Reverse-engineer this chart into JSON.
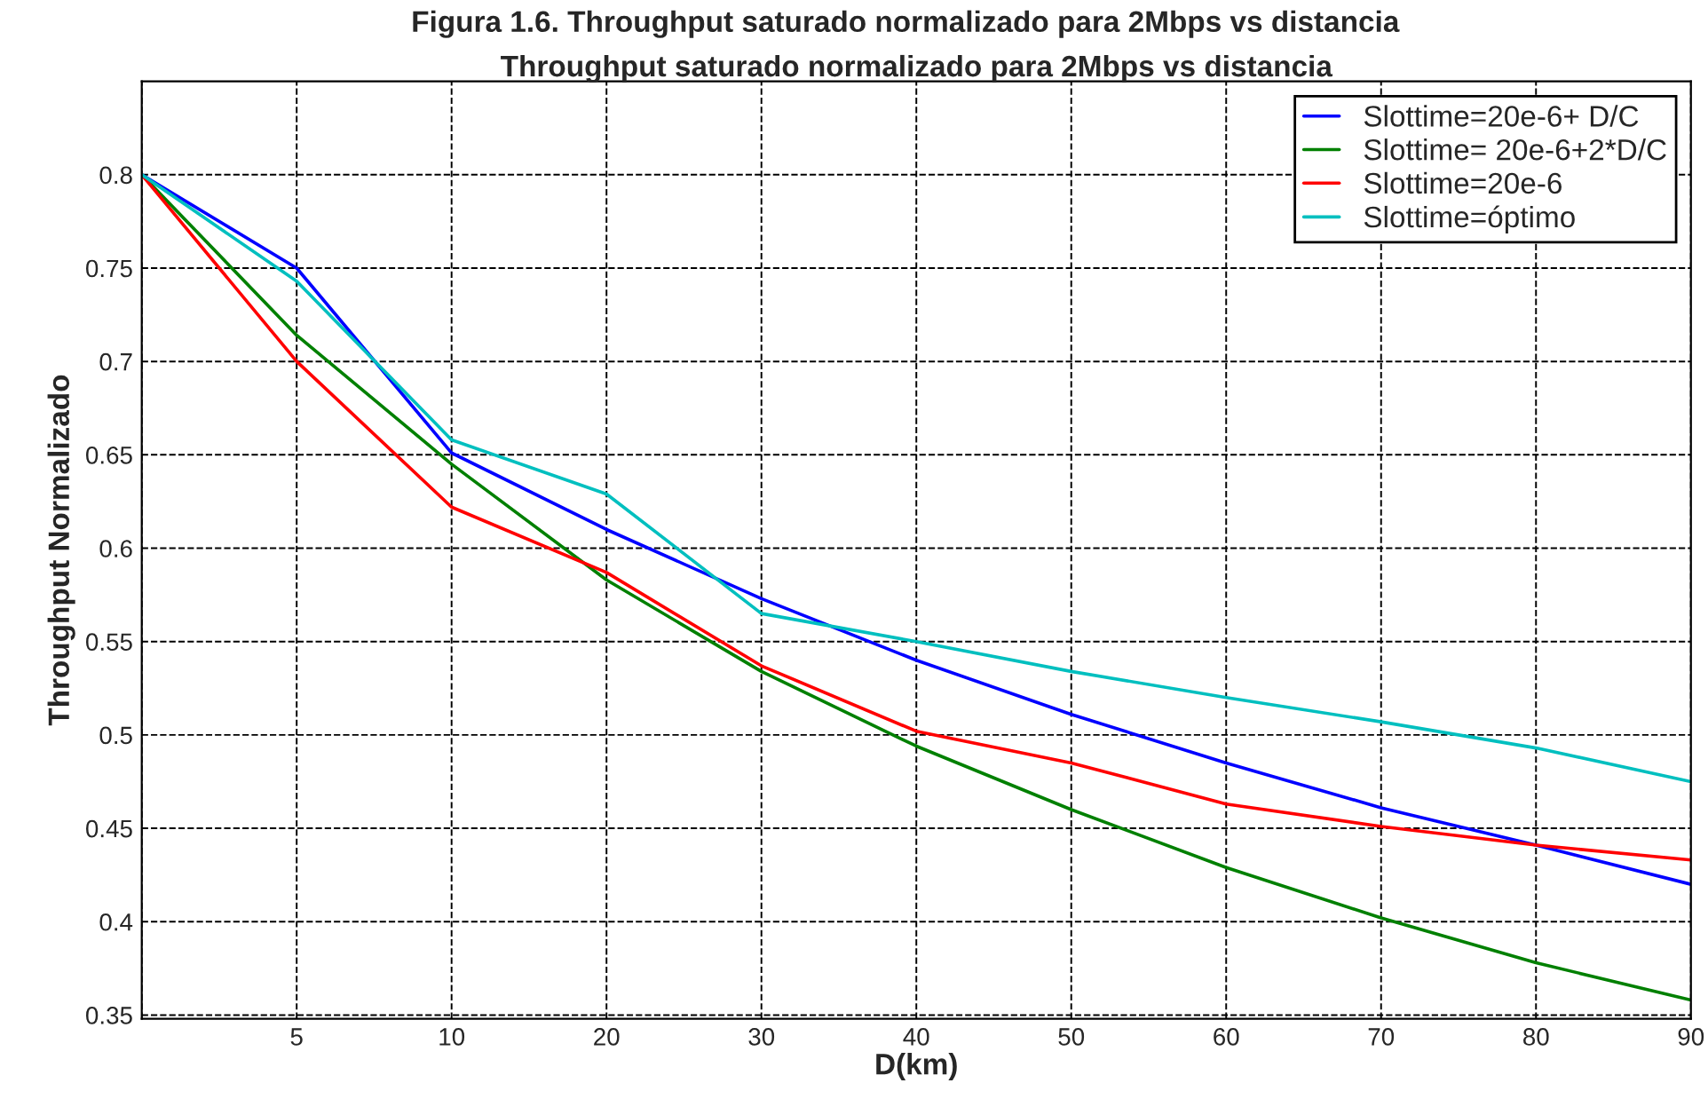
{
  "chart_data": {
    "type": "line",
    "title": "Figura 1.6. Throughput saturado normalizado para 2Mbps vs distancia",
    "subtitle": "Throughput saturado normalizado para 2Mbps vs distancia",
    "xlabel": "D(km)",
    "ylabel": "Throughput Normalizado",
    "categories": [
      null,
      "5",
      "10",
      "20",
      "30",
      "40",
      "50",
      "60",
      "70",
      "80",
      "90"
    ],
    "series": [
      {
        "name": "Slottime=20e-6+ D/C",
        "color": "#0000ff",
        "values": [
          0.8,
          0.75,
          0.651,
          0.61,
          0.573,
          0.54,
          0.511,
          0.485,
          0.461,
          0.441,
          0.42
        ]
      },
      {
        "name": "Slottime= 20e-6+2*D/C",
        "color": "#008000",
        "values": [
          0.8,
          0.714,
          0.645,
          0.583,
          0.534,
          0.494,
          0.46,
          0.429,
          0.402,
          0.378,
          0.358
        ]
      },
      {
        "name": "Slottime=20e-6",
        "color": "#ff0000",
        "values": [
          0.8,
          0.7,
          0.622,
          0.587,
          0.537,
          0.502,
          0.485,
          0.463,
          0.451,
          0.441,
          0.433
        ]
      },
      {
        "name": "Slottime=óptimo",
        "color": "#00bfbf",
        "values": [
          0.8,
          0.743,
          0.658,
          0.629,
          0.565,
          0.55,
          0.534,
          0.52,
          0.507,
          0.493,
          0.475
        ]
      }
    ],
    "ylim": [
      0.348,
      0.85
    ],
    "yticks": [
      0.35,
      0.4,
      0.45,
      0.5,
      0.55,
      0.6,
      0.65,
      0.7,
      0.75,
      0.8
    ],
    "grid": true,
    "legend": "top right",
    "line_style": "solid",
    "marker": "none"
  }
}
